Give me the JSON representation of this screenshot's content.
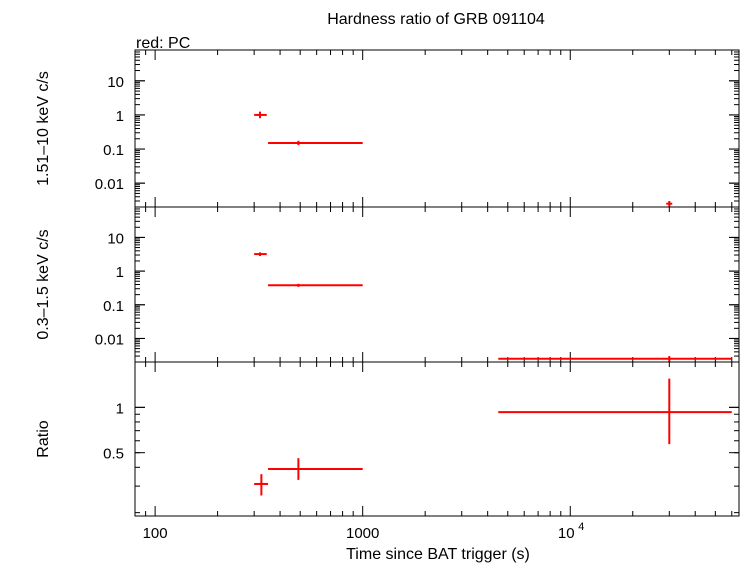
{
  "chart_data": {
    "type": "scatter",
    "title": "Hardness ratio of GRB 091104",
    "subtitle": "red: PC",
    "xlabel": "Time since BAT trigger (s)",
    "x_scale": "log",
    "xlim": [
      80,
      65000
    ],
    "x_tick_labels": [
      {
        "value": 100,
        "label": "100"
      },
      {
        "value": 1000,
        "label": "1000"
      },
      {
        "value": 10000,
        "label": "10",
        "exponent": "4"
      }
    ],
    "series_color": "#ff0000",
    "series_name": "PC",
    "panels": [
      {
        "id": "hard",
        "ylabel": "1.51–10 keV c/s",
        "y_scale": "log",
        "ylim": [
          0.002,
          80
        ],
        "y_tick_labels": [
          {
            "value": 10,
            "label": "10"
          },
          {
            "value": 1,
            "label": "1"
          },
          {
            "value": 0.1,
            "label": "0.1"
          },
          {
            "value": 0.01,
            "label": "0.01"
          }
        ],
        "points": [
          {
            "x": 320,
            "xlo": 300,
            "xhi": 345,
            "y": 1.0,
            "ylo": 0.8,
            "yhi": 1.25
          },
          {
            "x": 490,
            "xlo": 350,
            "xhi": 1000,
            "y": 0.15,
            "ylo": 0.13,
            "yhi": 0.175
          },
          {
            "x": 30000,
            "xlo": 29000,
            "xhi": 31000,
            "y": 0.0025,
            "ylo": 0.002,
            "yhi": 0.003
          }
        ]
      },
      {
        "id": "soft",
        "ylabel": "0.3–1.5 keV c/s",
        "y_scale": "log",
        "ylim": [
          0.002,
          80
        ],
        "y_tick_labels": [
          {
            "value": 10,
            "label": "10"
          },
          {
            "value": 1,
            "label": "1"
          },
          {
            "value": 0.1,
            "label": "0.1"
          },
          {
            "value": 0.01,
            "label": "0.01"
          }
        ],
        "points": [
          {
            "x": 320,
            "xlo": 300,
            "xhi": 345,
            "y": 3.2,
            "ylo": 2.8,
            "yhi": 3.6
          },
          {
            "x": 490,
            "xlo": 350,
            "xhi": 1000,
            "y": 0.38,
            "ylo": 0.34,
            "yhi": 0.42
          },
          {
            "x": 30000,
            "xlo": 4500,
            "xhi": 60000,
            "y": 0.0025,
            "ylo": 0.002,
            "yhi": 0.003
          }
        ]
      },
      {
        "id": "ratio",
        "ylabel": "Ratio",
        "y_scale": "log",
        "ylim": [
          0.19,
          2.0
        ],
        "y_tick_labels": [
          {
            "value": 1,
            "label": "1"
          },
          {
            "value": 0.5,
            "label": "0.5"
          }
        ],
        "points": [
          {
            "x": 325,
            "xlo": 300,
            "xhi": 350,
            "y": 0.31,
            "ylo": 0.26,
            "yhi": 0.36
          },
          {
            "x": 490,
            "xlo": 350,
            "xhi": 1000,
            "y": 0.39,
            "ylo": 0.33,
            "yhi": 0.46
          },
          {
            "x": 30000,
            "xlo": 4500,
            "xhi": 60000,
            "y": 0.93,
            "ylo": 0.57,
            "yhi": 1.55
          }
        ]
      }
    ]
  }
}
